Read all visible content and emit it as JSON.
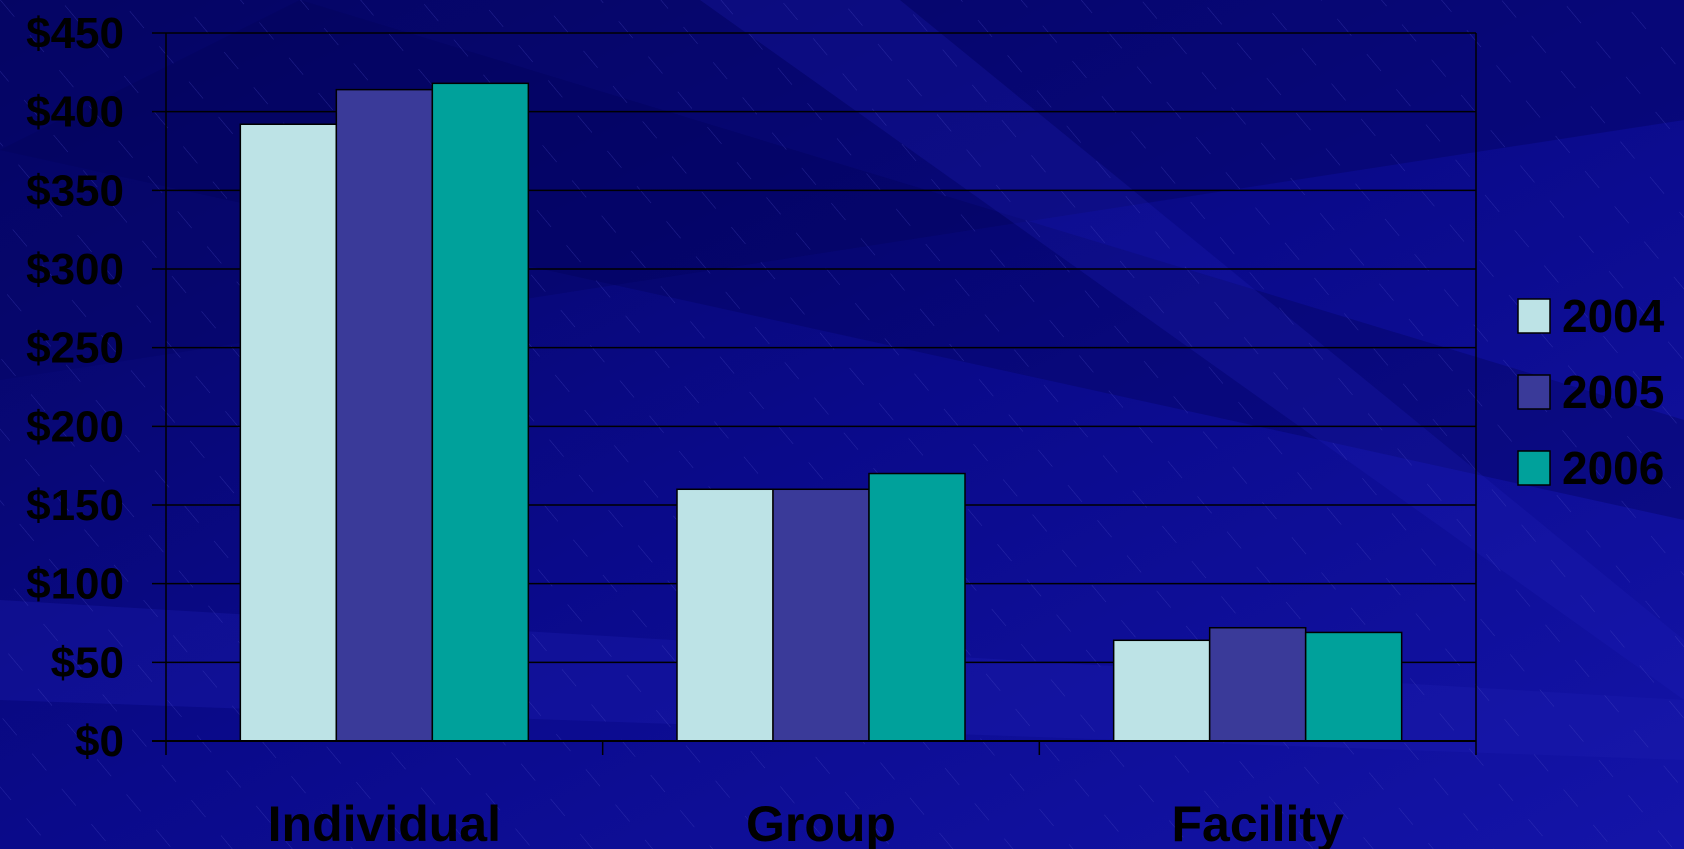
{
  "chart_data": {
    "type": "bar",
    "categories": [
      "Individual",
      "Group",
      "Facility"
    ],
    "series": [
      {
        "name": "2004",
        "values": [
          392,
          160,
          64
        ],
        "color": "#bde3e6"
      },
      {
        "name": "2005",
        "values": [
          414,
          160,
          72
        ],
        "color": "#3a3a99"
      },
      {
        "name": "2006",
        "values": [
          418,
          170,
          69
        ],
        "color": "#00a19b"
      }
    ],
    "yticks": [
      "$0",
      "$50",
      "$100",
      "$150",
      "$200",
      "$250",
      "$300",
      "$350",
      "$400",
      "$450"
    ],
    "ylim": [
      0,
      450
    ],
    "grid": true,
    "legend_position": "right"
  },
  "colors": {
    "background": "#0a0a86",
    "gridline": "#000000",
    "text": "#000000"
  }
}
